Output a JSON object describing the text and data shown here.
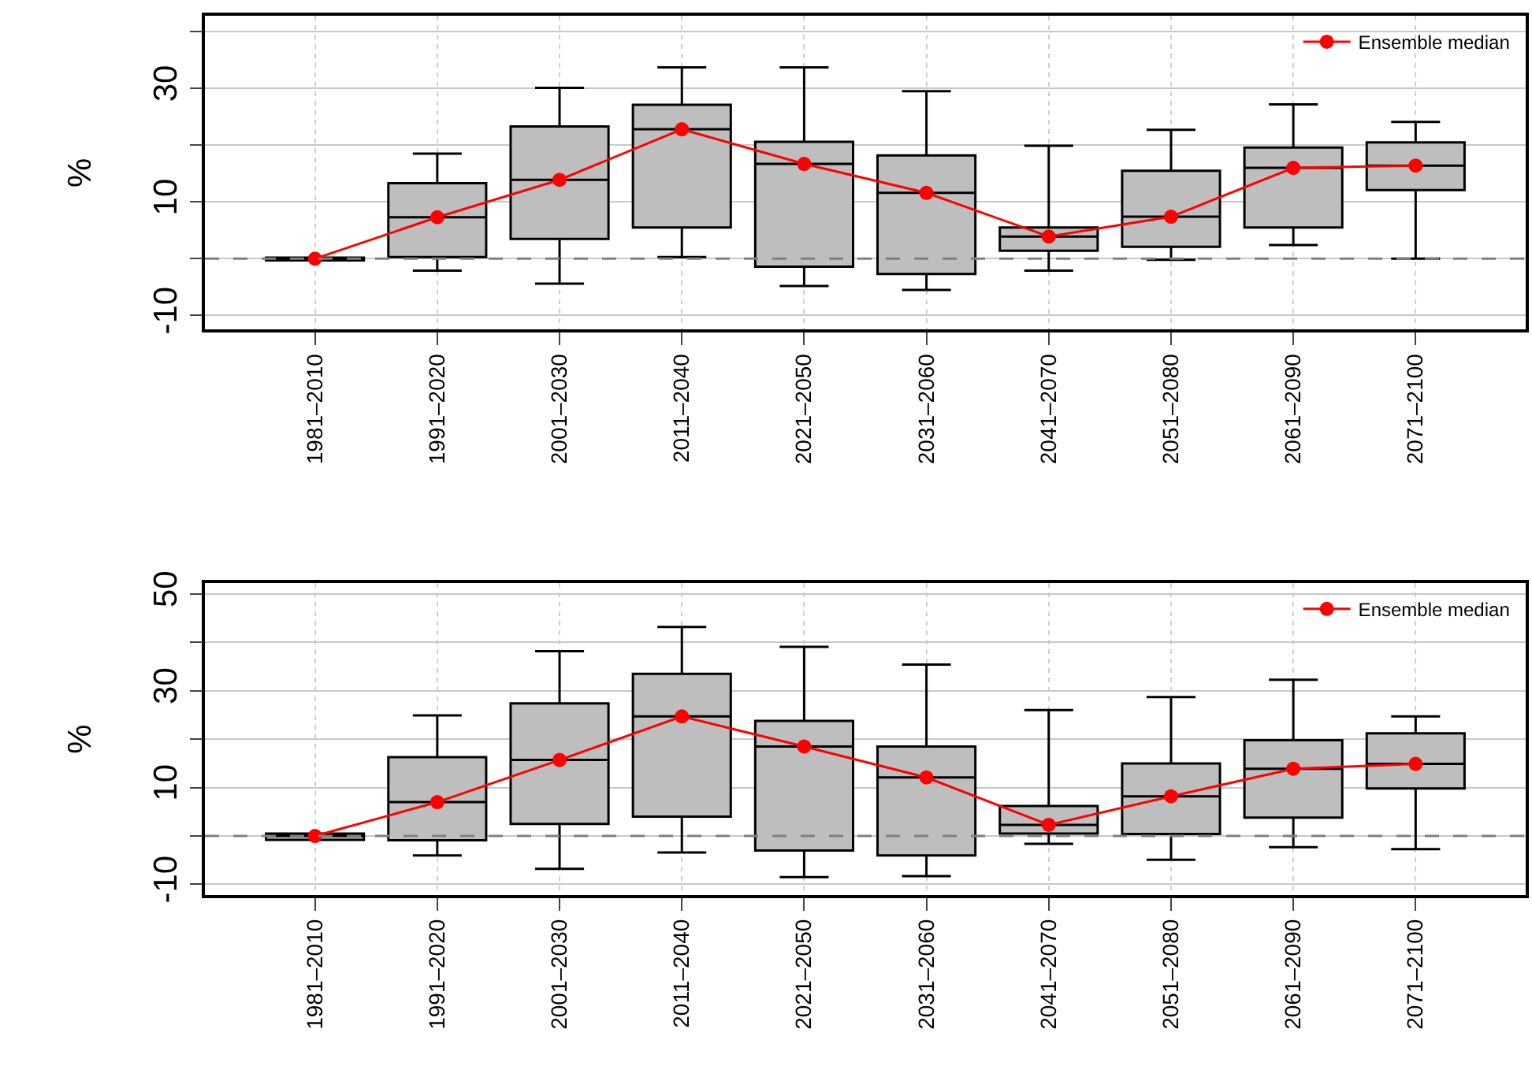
{
  "chart_data": [
    {
      "type": "box",
      "ylabel": "%",
      "categories": [
        "1981–2010",
        "1991–2020",
        "2001–2030",
        "2011–2040",
        "2021–2050",
        "2031–2060",
        "2041–2070",
        "2051–2080",
        "2061–2090",
        "2071–2100"
      ],
      "ylim": [
        -12.5,
        42.8
      ],
      "yticks": [
        -10,
        {
          "value": 0,
          "label": null
        },
        10,
        {
          "value": 20,
          "label": null
        },
        30,
        {
          "value": 40,
          "label": null
        }
      ],
      "grid": true,
      "legend": "top right",
      "marker": "circle",
      "ref_lines": [
        {
          "axis": "y",
          "value": 0,
          "label": null,
          "color": "#808080",
          "line_style": "dashed"
        }
      ],
      "series": [
        {
          "color": "#bebebe",
          "boxes": [
            {
              "low": -0.3,
              "q1": -0.3,
              "median": 0,
              "q3": 0.2,
              "high": 0.2
            },
            {
              "low": -2.1,
              "q1": 0.3,
              "median": 7.3,
              "q3": 13.3,
              "high": 18.5
            },
            {
              "low": -4.4,
              "q1": 3.5,
              "median": 13.9,
              "q3": 23.3,
              "high": 30.1
            },
            {
              "low": 0.3,
              "q1": 5.5,
              "median": 22.8,
              "q3": 27.1,
              "high": 33.7
            },
            {
              "low": -4.8,
              "q1": -1.4,
              "median": 16.7,
              "q3": 20.6,
              "high": 33.7
            },
            {
              "low": -5.5,
              "q1": -2.7,
              "median": 11.6,
              "q3": 18.2,
              "high": 29.5
            },
            {
              "low": -2.1,
              "q1": 1.4,
              "median": 3.9,
              "q3": 5.5,
              "high": 19.9
            },
            {
              "low": -0.2,
              "q1": 2.1,
              "median": 7.4,
              "q3": 15.5,
              "high": 22.7
            },
            {
              "low": 2.4,
              "q1": 5.5,
              "median": 16.0,
              "q3": 19.6,
              "high": 27.2
            },
            {
              "low": 0,
              "q1": 12.1,
              "median": 16.4,
              "q3": 20.5,
              "high": 24.1
            }
          ]
        },
        {
          "type": "line",
          "name": "Ensemble median",
          "color": "#ff0000",
          "values": [
            0,
            7.3,
            13.9,
            22.8,
            16.7,
            11.6,
            3.9,
            7.4,
            16.0,
            16.4
          ]
        }
      ]
    },
    {
      "type": "box",
      "ylabel": "%",
      "categories": [
        "1981–2010",
        "1991–2020",
        "2001–2030",
        "2011–2040",
        "2021–2050",
        "2031–2060",
        "2041–2070",
        "2051–2080",
        "2061–2090",
        "2071–2100"
      ],
      "ylim": [
        -12.2,
        52.3
      ],
      "yticks": [
        -10,
        {
          "value": 0,
          "label": null
        },
        10,
        {
          "value": 20,
          "label": null
        },
        30,
        {
          "value": 40,
          "label": null
        },
        50
      ],
      "grid": true,
      "legend": "top right",
      "marker": "circle",
      "ref_lines": [
        {
          "axis": "y",
          "value": 0,
          "label": null,
          "color": "#808080",
          "line_style": "dashed"
        }
      ],
      "series": [
        {
          "color": "#bebebe",
          "boxes": [
            {
              "low": -0.8,
              "q1": -0.8,
              "median": 0,
              "q3": 0.5,
              "high": 0.5
            },
            {
              "low": -4.0,
              "q1": -0.9,
              "median": 7.0,
              "q3": 16.3,
              "high": 24.9
            },
            {
              "low": -6.8,
              "q1": 2.5,
              "median": 15.7,
              "q3": 27.4,
              "high": 38.2
            },
            {
              "low": -3.4,
              "q1": 4.0,
              "median": 24.7,
              "q3": 33.5,
              "high": 43.2
            },
            {
              "low": -8.5,
              "q1": -3.0,
              "median": 18.5,
              "q3": 23.8,
              "high": 39.1
            },
            {
              "low": -8.3,
              "q1": -4.0,
              "median": 12.1,
              "q3": 18.5,
              "high": 35.4
            },
            {
              "low": -1.6,
              "q1": 0.5,
              "median": 2.3,
              "q3": 6.2,
              "high": 26.0
            },
            {
              "low": -4.9,
              "q1": 0.4,
              "median": 8.2,
              "q3": 15.0,
              "high": 28.7
            },
            {
              "low": -2.3,
              "q1": 3.8,
              "median": 13.9,
              "q3": 19.8,
              "high": 32.3
            },
            {
              "low": -2.7,
              "q1": 9.8,
              "median": 14.9,
              "q3": 21.2,
              "high": 24.7
            }
          ]
        },
        {
          "type": "line",
          "name": "Ensemble median",
          "color": "#ff0000",
          "values": [
            0,
            7.0,
            15.7,
            24.7,
            18.5,
            12.1,
            2.3,
            8.2,
            13.9,
            14.9
          ]
        }
      ]
    }
  ]
}
